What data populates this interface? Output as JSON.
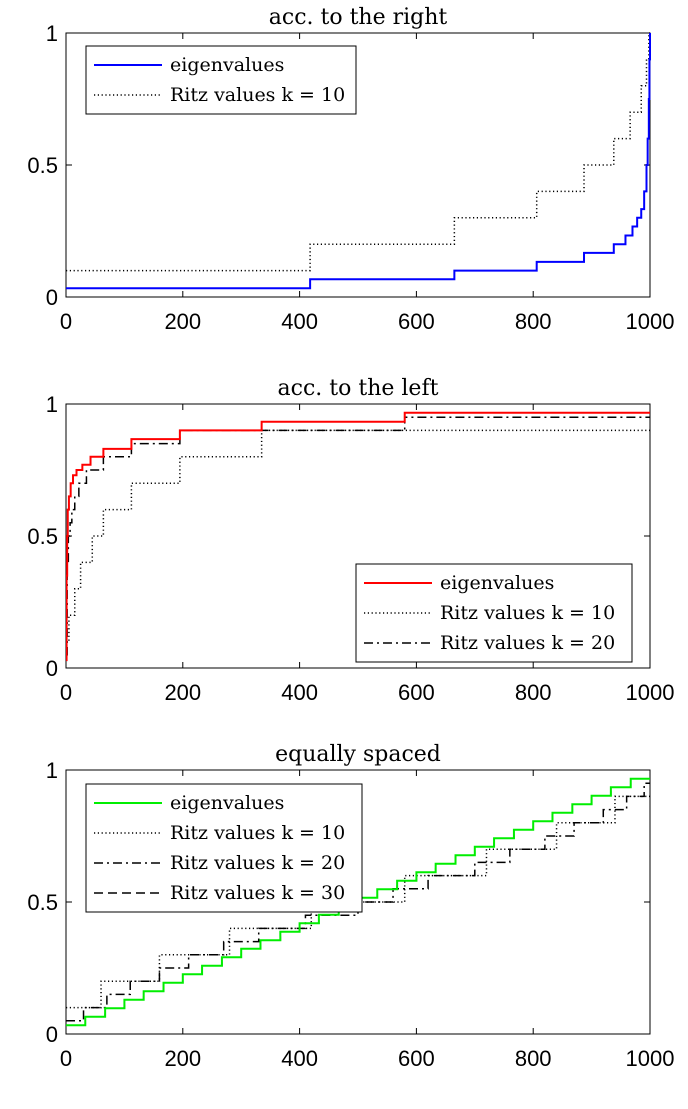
{
  "chart_data": [
    {
      "type": "line",
      "title": "acc. to the right",
      "xlim": [
        0,
        1000
      ],
      "ylim": [
        0,
        1
      ],
      "xticks": [
        "0",
        "200",
        "400",
        "600",
        "800",
        "1000"
      ],
      "yticks": [
        "0",
        "0.5",
        "1"
      ],
      "legend_position": "top-left",
      "series": [
        {
          "name": "eigenvalues",
          "color": "#0000ff",
          "style": "solid",
          "x": [
            0,
            418,
            665,
            806,
            887,
            938,
            958,
            970,
            978,
            985,
            990,
            994,
            996,
            998,
            999,
            1000
          ],
          "y": [
            0.033,
            0.067,
            0.1,
            0.133,
            0.167,
            0.2,
            0.233,
            0.267,
            0.3,
            0.333,
            0.4,
            0.5,
            0.6,
            0.75,
            0.9,
            1.0
          ]
        },
        {
          "name": "Ritz values k = 10",
          "color": "#000000",
          "style": "dotted",
          "x": [
            0,
            418,
            665,
            806,
            887,
            938,
            966,
            985,
            994,
            998,
            1000
          ],
          "y": [
            0.1,
            0.2,
            0.3,
            0.4,
            0.5,
            0.6,
            0.7,
            0.8,
            0.9,
            1.0,
            1.0
          ]
        }
      ]
    },
    {
      "type": "line",
      "title": "acc. to the left",
      "xlim": [
        0,
        1000
      ],
      "ylim": [
        0,
        1
      ],
      "xticks": [
        "0",
        "200",
        "400",
        "600",
        "800",
        "1000"
      ],
      "yticks": [
        "0",
        "0.5",
        "1"
      ],
      "legend_position": "bottom-right",
      "series": [
        {
          "name": "eigenvalues",
          "color": "#ff0000",
          "style": "solid",
          "x": [
            0,
            1,
            2,
            3,
            5,
            8,
            12,
            18,
            28,
            42,
            64,
            112,
            195,
            335,
            580,
            1000
          ],
          "y": [
            0.03,
            0.35,
            0.5,
            0.6,
            0.65,
            0.7,
            0.73,
            0.75,
            0.77,
            0.8,
            0.83,
            0.867,
            0.9,
            0.933,
            0.967,
            0.967
          ]
        },
        {
          "name": "Ritz values k = 10",
          "color": "#000000",
          "style": "dotted",
          "x": [
            0,
            5,
            15,
            25,
            45,
            64,
            112,
            195,
            335,
            580,
            1000
          ],
          "y": [
            0.1,
            0.2,
            0.3,
            0.4,
            0.5,
            0.6,
            0.7,
            0.8,
            0.9,
            0.9,
            0.9
          ]
        },
        {
          "name": "Ritz values k = 20",
          "color": "#000000",
          "style": "dashdot",
          "x": [
            0,
            2,
            4,
            7,
            10,
            15,
            22,
            35,
            64,
            112,
            195,
            335,
            580,
            1000
          ],
          "y": [
            0.05,
            0.4,
            0.5,
            0.55,
            0.6,
            0.65,
            0.7,
            0.75,
            0.8,
            0.85,
            0.9,
            0.9,
            0.95,
            0.95
          ]
        }
      ]
    },
    {
      "type": "line",
      "title": "equally spaced",
      "xlim": [
        0,
        1000
      ],
      "ylim": [
        0,
        1
      ],
      "xticks": [
        "0",
        "200",
        "400",
        "600",
        "800",
        "1000"
      ],
      "yticks": [
        "0",
        "0.5",
        "1"
      ],
      "legend_position": "top-left",
      "series": [
        {
          "name": "eigenvalues",
          "color": "#00ee00",
          "style": "solid",
          "steps_n": 30,
          "y_start": 0.033,
          "y_step": 0.0322
        },
        {
          "name": "Ritz values k = 10",
          "color": "#000000",
          "style": "dotted",
          "x": [
            0,
            60,
            160,
            280,
            420,
            580,
            720,
            840,
            940,
            1000
          ],
          "y": [
            0.1,
            0.2,
            0.3,
            0.4,
            0.5,
            0.6,
            0.7,
            0.8,
            0.9,
            0.9
          ]
        },
        {
          "name": "Ritz values k = 20",
          "color": "#000000",
          "style": "dashdot",
          "x": [
            0,
            30,
            70,
            110,
            160,
            210,
            270,
            330,
            410,
            500,
            560,
            620,
            700,
            760,
            820,
            870,
            920,
            960,
            990,
            1000
          ],
          "y": [
            0.05,
            0.1,
            0.15,
            0.2,
            0.25,
            0.3,
            0.35,
            0.4,
            0.45,
            0.5,
            0.55,
            0.6,
            0.65,
            0.7,
            0.75,
            0.8,
            0.85,
            0.9,
            0.95,
            0.95
          ]
        },
        {
          "name": "Ritz values k = 30",
          "color": "#000000",
          "style": "dashed",
          "steps_n": 30,
          "y_start": 0.033,
          "y_step": 0.0322
        }
      ]
    }
  ]
}
